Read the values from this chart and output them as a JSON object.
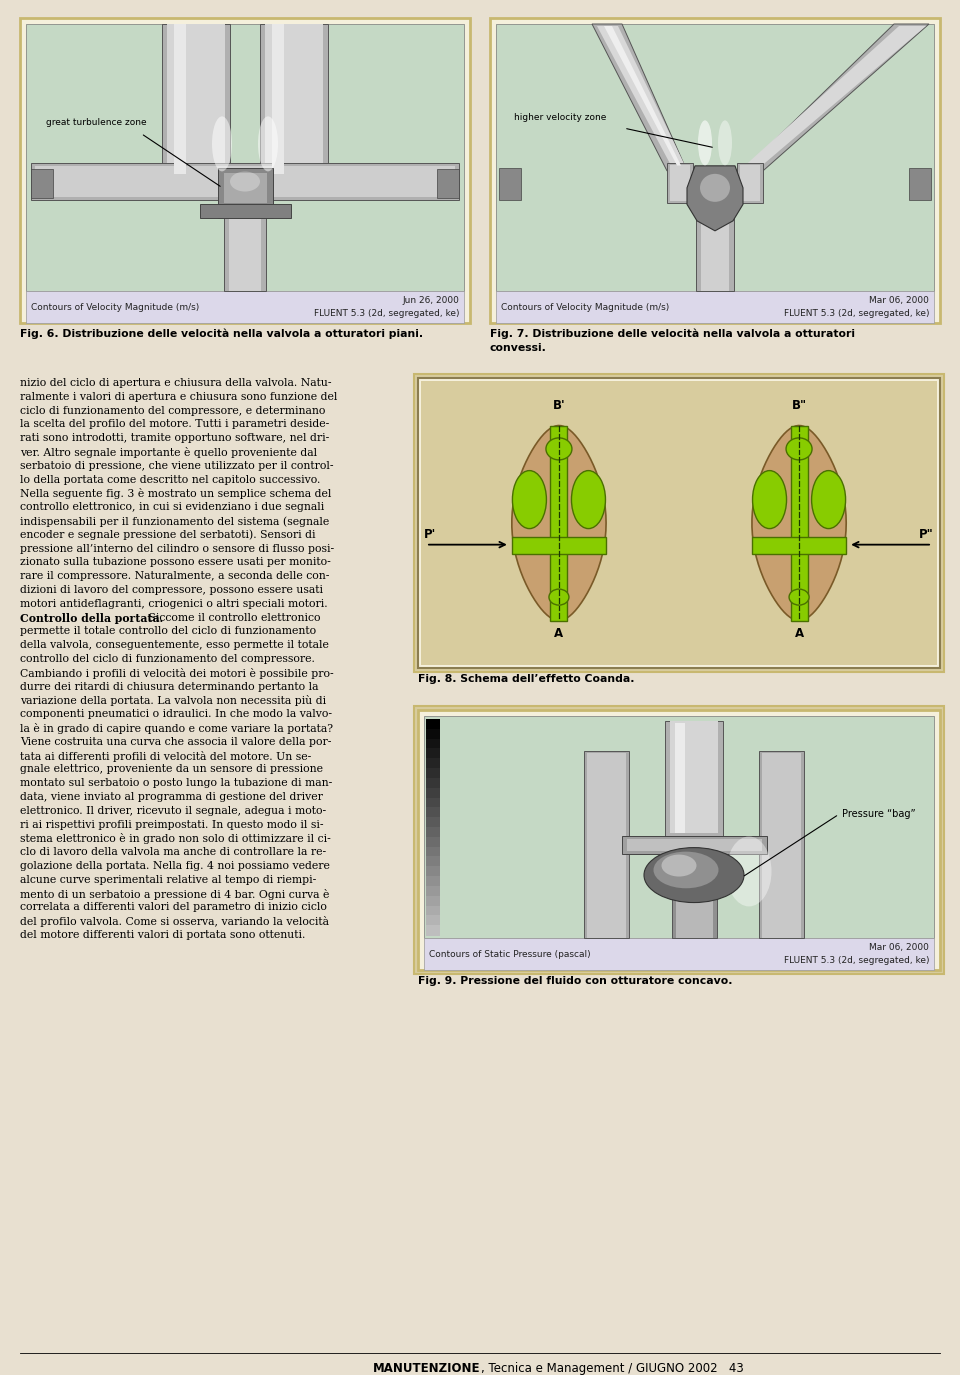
{
  "page_bg": "#e8e0d0",
  "fig6_caption": "Fig. 6. Distribuzione delle velocità nella valvola a otturatori piani.",
  "fig7_caption_l1": "Fig. 7. Distribuzione delle velocità nella valvola a otturatori",
  "fig7_caption_l2": "convessi.",
  "fig8_caption": "Fig. 8. Schema dell’effetto Coanda.",
  "fig9_caption": "Fig. 9. Pressione del fluido con otturatore concavo.",
  "text_block1": [
    "nizio del ciclo di apertura e chiusura della valvola. Natu-",
    "ralmente i valori di apertura e chiusura sono funzione del",
    "ciclo di funzionamento del compressore, e determinano",
    "la scelta del profilo del motore. Tutti i parametri deside-",
    "rati sono introdotti, tramite opportuno software, nel dri-",
    "ver. Altro segnale importante è quello proveniente dal",
    "serbatoio di pressione, che viene utilizzato per il control-",
    "lo della portata come descritto nel capitolo successivo.",
    "Nella seguente fig. 3 è mostrato un semplice schema del",
    "controllo elettronico, in cui si evidenziano i due segnali",
    "indispensabili per il funzionamento del sistema (segnale",
    "encoder e segnale pressione del serbatoti). Sensori di",
    "pressione all’interno del cilindro o sensore di flusso posi-",
    "zionato sulla tubazione possono essere usati per monito-",
    "rare il compressore. Naturalmente, a seconda delle con-",
    "dizioni di lavoro del compressore, possono essere usati",
    "motori antideflagranti, criogenici o altri speciali motori."
  ],
  "text_bold_prefix": "Controllo della portata.",
  "text_bold_suffix": " Siccome il controllo elettronico",
  "text_block2": [
    "permette il totale controllo del ciclo di funzionamento",
    "della valvola, conseguentemente, esso permette il totale",
    "controllo del ciclo di funzionamento del compressore.",
    "Cambiando i profili di velocità dei motori è possibile pro-",
    "durre dei ritardi di chiusura determinando pertanto la",
    "variazione della portata. La valvola non necessita più di",
    "componenti pneumatici o idraulici. In che modo la valvo-",
    "la è in grado di capire quando e come variare la portata?",
    "Viene costruita una curva che associa il valore della por-",
    "tata ai differenti profili di velocità del motore. Un se-",
    "gnale elettrico, proveniente da un sensore di pressione",
    "montato sul serbatoio o posto lungo la tubazione di man-",
    "data, viene inviato al programma di gestione del driver",
    "elettronico. Il driver, ricevuto il segnale, adegua i moto-",
    "ri ai rispettivi profili preimpostati. In questo modo il si-",
    "stema elettronico è in grado non solo di ottimizzare il ci-",
    "clo di lavoro della valvola ma anche di controllare la re-",
    "golazione della portata. Nella fig. 4 noi possiamo vedere",
    "alcune curve sperimentali relative al tempo di riempi-",
    "mento di un serbatoio a pressione di 4 bar. Ogni curva è",
    "correlata a differenti valori del parametro di inizio ciclo",
    "del profilo valvola. Come si osserva, variando la velocità",
    "del motore differenti valori di portata sono ottenuti."
  ],
  "fluent_label1": "Contours of Velocity Magnitude (m/s)",
  "fluent_date1": "Jun 26, 2000",
  "fluent_sw1": "FLUENT 5.3 (2d, segregated, ke)",
  "fluent_label2": "Contours of Velocity Magnitude (m/s)",
  "fluent_date2": "Mar 06, 2000",
  "fluent_sw2": "FLUENT 5.3 (2d, segregated, ke)",
  "fluent_label3": "Contours of Static Pressure (pascal)",
  "fluent_date3": "Mar 06, 2000",
  "fluent_sw3": "FLUENT 5.3 (2d, segregated, ke)",
  "ann1": "great turbulence zone",
  "ann2": "higher velocity zone",
  "ann3": "Pressure “bag”",
  "fig_green_bg": "#c5d9c5",
  "fig_cream_bg": "#f5f0dc",
  "fig_tan_bg": "#d8cc9e",
  "fluent_bar_bg": "#dcd8ea",
  "fig_border_gold": "#c8b870",
  "fig_border_dark": "#8b7d50",
  "brown_body": "#c8a070",
  "green_col": "#88cc00",
  "footer_bold": "MANUTENZIONE",
  "footer_rest": ", Tecnica e Management / GIUGNO 2002   43"
}
